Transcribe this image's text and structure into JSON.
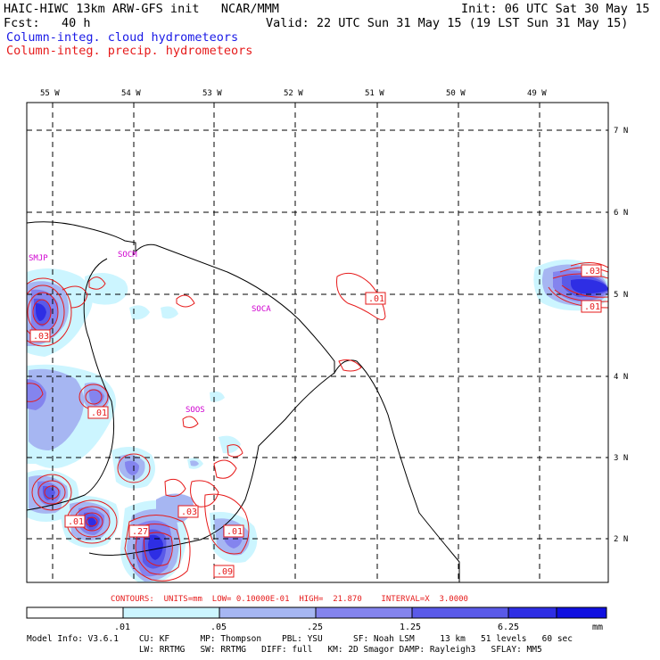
{
  "header": {
    "title_left": "HAIC-HIWC 13km ARW-GFS init   NCAR/MMM",
    "init": "Init: 06 UTC Sat 30 May 15",
    "fcst": "Fcst:   40 h",
    "valid": "Valid: 22 UTC Sun 31 May 15 (19 LST Sun 31 May 15)",
    "field_blue": "Column-integ. cloud hydrometeors",
    "field_red": "Column-integ. precip. hydrometeors"
  },
  "map": {
    "lon_labels": [
      "55 W",
      "54 W",
      "53 W",
      "52 W",
      "51 W",
      "50 W",
      "49 W"
    ],
    "lat_labels": [
      "7 N",
      "6 N",
      "5 N",
      "4 N",
      "3 N",
      "2 N"
    ],
    "stations": [
      "SMJP",
      "SOCM",
      "SOCA",
      "SOOS"
    ],
    "contour_labels": [
      ".03",
      ".01",
      ".03",
      ".01",
      ".01",
      ".01",
      ".27",
      ".03",
      ".01",
      ".09"
    ],
    "colors": {
      "red": "#e61a1a",
      "magenta": "#d000d0",
      "blue_dark": "#1a1ae6"
    }
  },
  "legend": {
    "contours_line": "CONTOURS:  UNITS=mm  LOW= 0.10000E-01  HIGH=  21.870    INTERVAL=X  3.0000",
    "tick_labels": [
      ".01",
      ".05",
      ".25",
      "1.25",
      "6.25"
    ],
    "units": "mm",
    "colors": [
      "#ffffff",
      "#ccf5ff",
      "#a6b6f2",
      "#8484ee",
      "#5a5ae8",
      "#2e2ee4",
      "#1010e0"
    ]
  },
  "footer": {
    "line1": "Model Info: V3.6.1    CU: KF      MP: Thompson    PBL: YSU      SF: Noah LSM     13 km   51 levels   60 sec",
    "line2": "                      LW: RRTMG   SW: RRTMG   DIFF: full   KM: 2D Smagor DAMP: Rayleigh3   SFLAY: MM5"
  }
}
